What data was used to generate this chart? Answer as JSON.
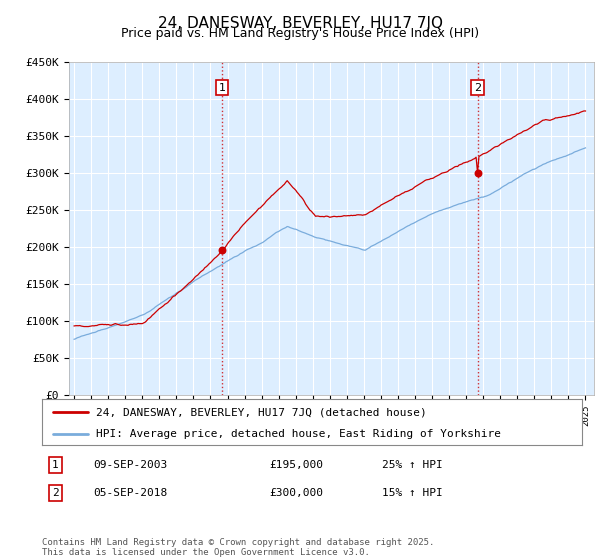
{
  "title": "24, DANESWAY, BEVERLEY, HU17 7JQ",
  "subtitle": "Price paid vs. HM Land Registry's House Price Index (HPI)",
  "ylim": [
    0,
    450000
  ],
  "yticks": [
    0,
    50000,
    100000,
    150000,
    200000,
    250000,
    300000,
    350000,
    400000,
    450000
  ],
  "ytick_labels": [
    "£0",
    "£50K",
    "£100K",
    "£150K",
    "£200K",
    "£250K",
    "£300K",
    "£350K",
    "£400K",
    "£450K"
  ],
  "hpi_color": "#7aacdc",
  "price_color": "#cc0000",
  "figure_bg_color": "#ffffff",
  "plot_bg_color": "#ddeeff",
  "grid_color": "#ffffff",
  "vline_color": "#cc0000",
  "legend1_label": "24, DANESWAY, BEVERLEY, HU17 7JQ (detached house)",
  "legend2_label": "HPI: Average price, detached house, East Riding of Yorkshire",
  "table_row1": [
    "1",
    "09-SEP-2003",
    "£195,000",
    "25% ↑ HPI"
  ],
  "table_row2": [
    "2",
    "05-SEP-2018",
    "£300,000",
    "15% ↑ HPI"
  ],
  "footer": "Contains HM Land Registry data © Crown copyright and database right 2025.\nThis data is licensed under the Open Government Licence v3.0.",
  "title_fontsize": 11,
  "subtitle_fontsize": 9,
  "tick_fontsize": 8,
  "legend_fontsize": 8,
  "table_fontsize": 8,
  "footer_fontsize": 6.5
}
